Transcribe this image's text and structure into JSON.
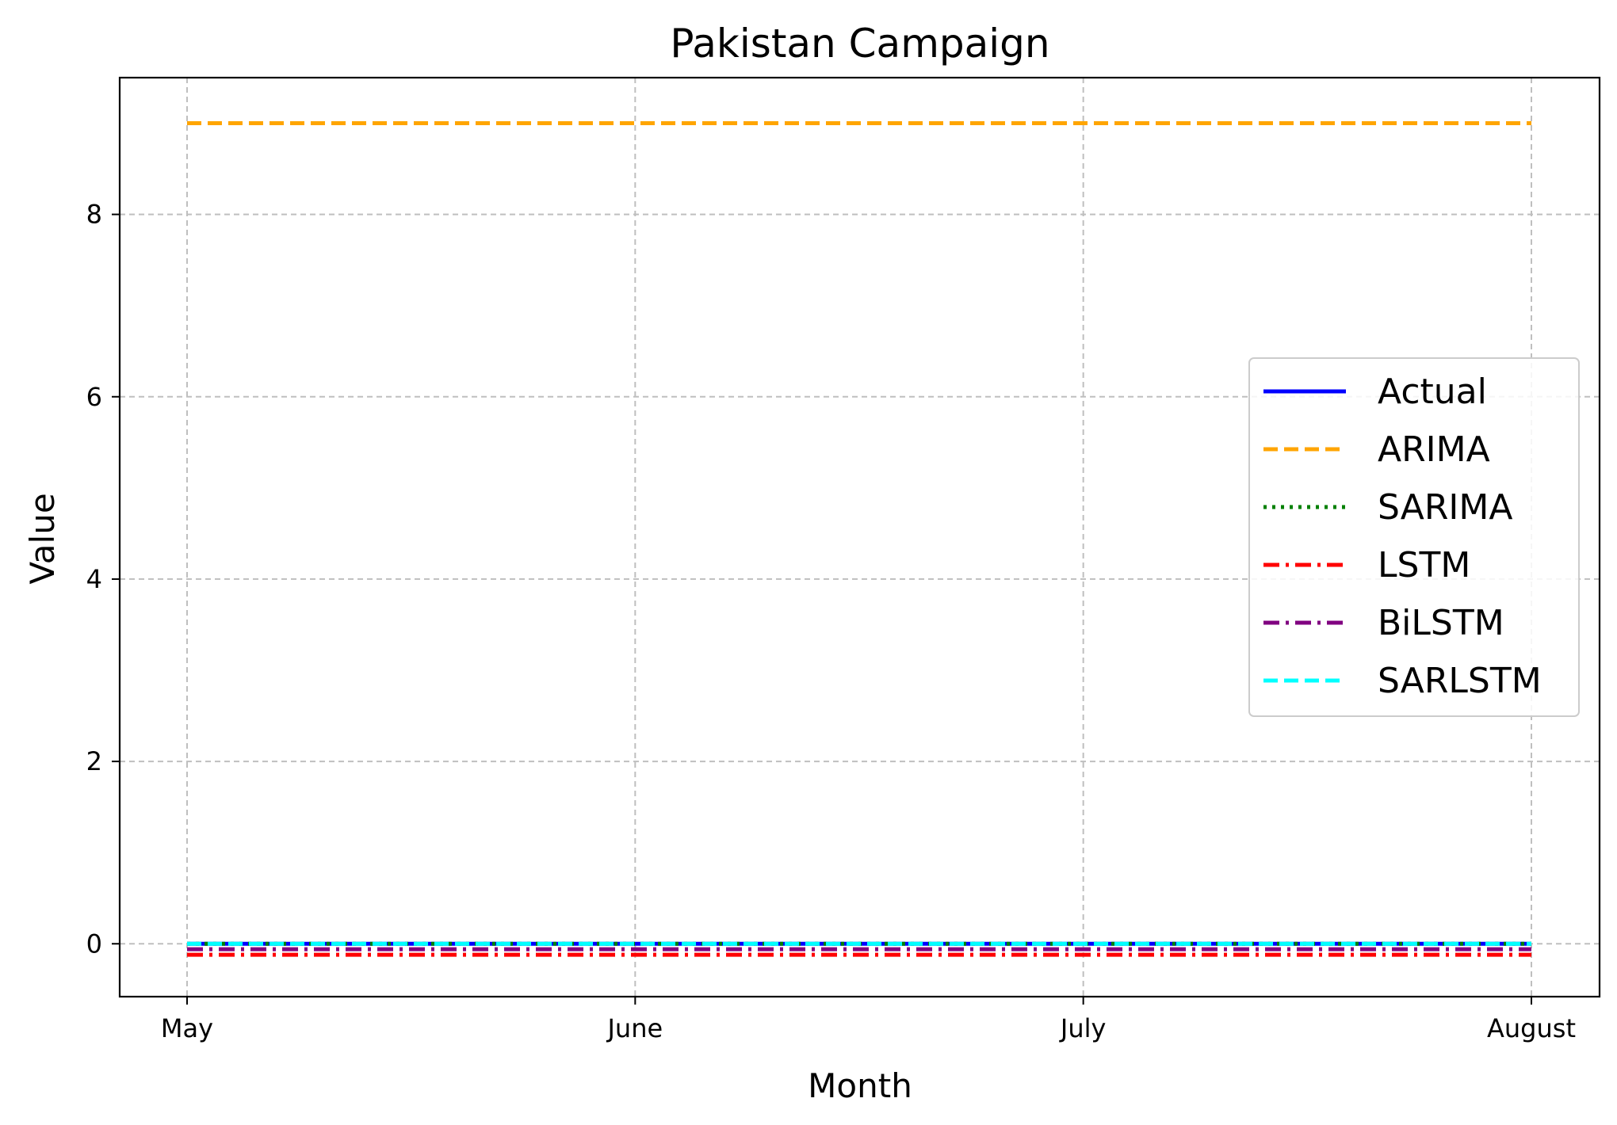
{
  "chart_data": {
    "type": "line",
    "title": "Pakistan Campaign",
    "xlabel": "Month",
    "ylabel": "Value",
    "categories": [
      "May",
      "June",
      "July",
      "August"
    ],
    "ylim": [
      -0.58,
      9.5
    ],
    "yticks": [
      0,
      2,
      4,
      6,
      8
    ],
    "grid": true,
    "legend_position": "center-right",
    "series": [
      {
        "name": "Actual",
        "values": [
          0,
          0,
          0,
          0
        ],
        "color": "#0000ff",
        "style": "solid"
      },
      {
        "name": "ARIMA",
        "values": [
          9,
          9,
          9,
          9
        ],
        "color": "#ffa500",
        "style": "dashed"
      },
      {
        "name": "SARIMA",
        "values": [
          0,
          0,
          0,
          0
        ],
        "color": "#008000",
        "style": "dotted"
      },
      {
        "name": "LSTM",
        "values": [
          -0.12,
          -0.12,
          -0.12,
          -0.12
        ],
        "color": "#ff0000",
        "style": "dashdot"
      },
      {
        "name": "BiLSTM",
        "values": [
          -0.06,
          -0.06,
          -0.06,
          -0.06
        ],
        "color": "#800080",
        "style": "dashdot"
      },
      {
        "name": "SARLSTM",
        "values": [
          0,
          0,
          0,
          0
        ],
        "color": "#00ffff",
        "style": "dashed"
      }
    ]
  }
}
